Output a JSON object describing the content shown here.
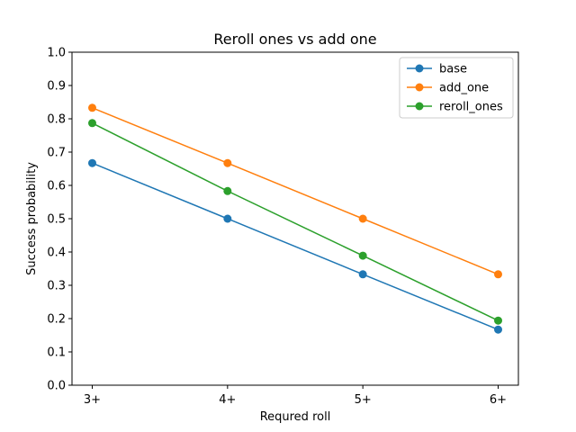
{
  "chart_data": {
    "type": "line",
    "title": "Reroll ones vs add one",
    "xlabel": "Requred roll",
    "ylabel": "Success probability",
    "categories": [
      "3+",
      "4+",
      "5+",
      "6+"
    ],
    "ylim": [
      0,
      1.0
    ],
    "yticks": [
      "0.0",
      "0.1",
      "0.2",
      "0.3",
      "0.4",
      "0.5",
      "0.6",
      "0.7",
      "0.8",
      "0.9",
      "1.0"
    ],
    "grid": false,
    "legend_position": "upper right",
    "series": [
      {
        "name": "base",
        "color": "#1f77b4",
        "values": [
          0.667,
          0.5,
          0.333,
          0.167
        ]
      },
      {
        "name": "add_one",
        "color": "#ff7f0e",
        "values": [
          0.833,
          0.667,
          0.5,
          0.333
        ]
      },
      {
        "name": "reroll_ones",
        "color": "#2ca02c",
        "values": [
          0.787,
          0.583,
          0.389,
          0.194
        ]
      }
    ]
  }
}
